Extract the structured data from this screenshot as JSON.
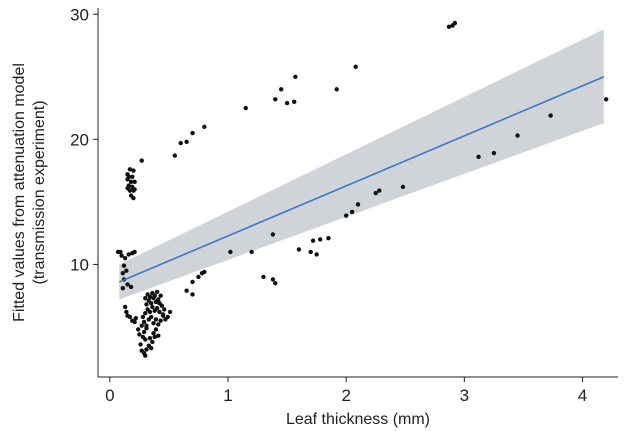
{
  "chart_data": {
    "type": "scatter",
    "title": "",
    "xlabel": "Leaf thickness (mm)",
    "ylabel": "Fitted values from attenuation model",
    "ylabel_line2": "(transmission experiment)",
    "xlim": [
      -0.1,
      4.3
    ],
    "ylim": [
      1.0,
      30.5
    ],
    "x_ticks": [
      0,
      1,
      2,
      3,
      4
    ],
    "y_ticks": [
      10,
      20,
      30
    ],
    "grid": false,
    "legend": "none",
    "colors": {
      "points": "#111111",
      "line": "#3a78c6",
      "band": "#c8ccd2",
      "axis": "#222222"
    },
    "fit": {
      "method": "linear",
      "x": [
        0.08,
        4.18
      ],
      "y": [
        8.6,
        25.0
      ],
      "ci_lower": [
        7.2,
        21.3
      ],
      "ci_upper": [
        10.0,
        28.8
      ]
    },
    "points": [
      [
        0.07,
        11.0
      ],
      [
        0.09,
        11.0
      ],
      [
        0.1,
        10.7
      ],
      [
        0.13,
        10.5
      ],
      [
        0.16,
        10.8
      ],
      [
        0.19,
        10.9
      ],
      [
        0.21,
        11.0
      ],
      [
        0.11,
        9.3
      ],
      [
        0.12,
        8.8
      ],
      [
        0.14,
        9.5
      ],
      [
        0.11,
        8.1
      ],
      [
        0.15,
        8.4
      ],
      [
        0.18,
        8.2
      ],
      [
        0.12,
        9.9
      ],
      [
        0.15,
        17.2
      ],
      [
        0.17,
        17.6
      ],
      [
        0.2,
        17.5
      ],
      [
        0.16,
        17.0
      ],
      [
        0.19,
        17.0
      ],
      [
        0.15,
        16.8
      ],
      [
        0.18,
        16.6
      ],
      [
        0.21,
        16.6
      ],
      [
        0.16,
        16.3
      ],
      [
        0.19,
        16.2
      ],
      [
        0.17,
        15.9
      ],
      [
        0.2,
        15.9
      ],
      [
        0.18,
        15.5
      ],
      [
        0.2,
        15.3
      ],
      [
        0.15,
        16.1
      ],
      [
        0.21,
        16.0
      ],
      [
        0.27,
        18.3
      ],
      [
        0.13,
        6.6
      ],
      [
        0.14,
        6.2
      ],
      [
        0.15,
        5.9
      ],
      [
        0.17,
        5.8
      ],
      [
        0.19,
        5.5
      ],
      [
        0.21,
        5.4
      ],
      [
        0.22,
        5.7
      ],
      [
        0.24,
        4.8
      ],
      [
        0.25,
        4.4
      ],
      [
        0.26,
        3.6
      ],
      [
        0.27,
        3.1
      ],
      [
        0.29,
        2.9
      ],
      [
        0.3,
        2.7
      ],
      [
        0.31,
        3.2
      ],
      [
        0.28,
        4.2
      ],
      [
        0.3,
        4.0
      ],
      [
        0.33,
        3.5
      ],
      [
        0.34,
        4.1
      ],
      [
        0.35,
        3.3
      ],
      [
        0.27,
        5.1
      ],
      [
        0.29,
        5.4
      ],
      [
        0.31,
        5.1
      ],
      [
        0.33,
        5.6
      ],
      [
        0.35,
        5.8
      ],
      [
        0.37,
        5.3
      ],
      [
        0.39,
        5.6
      ],
      [
        0.41,
        5.2
      ],
      [
        0.43,
        5.5
      ],
      [
        0.45,
        5.9
      ],
      [
        0.47,
        5.6
      ],
      [
        0.28,
        5.8
      ],
      [
        0.3,
        6.1
      ],
      [
        0.32,
        6.4
      ],
      [
        0.34,
        6.2
      ],
      [
        0.36,
        6.6
      ],
      [
        0.38,
        6.3
      ],
      [
        0.4,
        6.5
      ],
      [
        0.42,
        6.2
      ],
      [
        0.44,
        6.7
      ],
      [
        0.46,
        6.4
      ],
      [
        0.31,
        6.8
      ],
      [
        0.33,
        7.1
      ],
      [
        0.35,
        6.9
      ],
      [
        0.37,
        7.3
      ],
      [
        0.39,
        7.0
      ],
      [
        0.41,
        7.2
      ],
      [
        0.43,
        7.5
      ],
      [
        0.32,
        7.6
      ],
      [
        0.34,
        7.4
      ],
      [
        0.36,
        7.7
      ],
      [
        0.38,
        7.5
      ],
      [
        0.4,
        7.8
      ],
      [
        0.3,
        7.3
      ],
      [
        0.42,
        6.9
      ],
      [
        0.29,
        4.6
      ],
      [
        0.31,
        4.9
      ],
      [
        0.37,
        4.5
      ],
      [
        0.39,
        4.8
      ],
      [
        0.41,
        4.3
      ],
      [
        0.36,
        3.8
      ],
      [
        0.38,
        4.2
      ],
      [
        0.51,
        6.2
      ],
      [
        0.49,
        5.8
      ],
      [
        0.45,
        6.0
      ],
      [
        0.55,
        18.7
      ],
      [
        0.6,
        19.7
      ],
      [
        0.65,
        19.8
      ],
      [
        0.7,
        20.5
      ],
      [
        0.8,
        21.0
      ],
      [
        0.65,
        7.9
      ],
      [
        0.7,
        8.6
      ],
      [
        0.75,
        9.0
      ],
      [
        0.78,
        9.3
      ],
      [
        0.8,
        9.4
      ],
      [
        0.7,
        7.6
      ],
      [
        1.02,
        11.0
      ],
      [
        1.15,
        22.5
      ],
      [
        1.2,
        11.0
      ],
      [
        1.3,
        9.0
      ],
      [
        1.38,
        8.8
      ],
      [
        1.4,
        8.5
      ],
      [
        1.38,
        12.4
      ],
      [
        1.4,
        23.2
      ],
      [
        1.45,
        24.0
      ],
      [
        1.5,
        22.9
      ],
      [
        1.56,
        23.0
      ],
      [
        1.57,
        25.0
      ],
      [
        1.6,
        11.2
      ],
      [
        1.7,
        11.0
      ],
      [
        1.72,
        11.9
      ],
      [
        1.75,
        10.8
      ],
      [
        1.78,
        12.0
      ],
      [
        1.85,
        12.1
      ],
      [
        1.92,
        24.0
      ],
      [
        2.0,
        13.9
      ],
      [
        2.05,
        14.2
      ],
      [
        2.08,
        25.8
      ],
      [
        2.1,
        14.8
      ],
      [
        2.25,
        15.7
      ],
      [
        2.28,
        15.9
      ],
      [
        2.48,
        16.2
      ],
      [
        2.87,
        29.0
      ],
      [
        2.9,
        29.1
      ],
      [
        2.92,
        29.3
      ],
      [
        3.12,
        18.6
      ],
      [
        3.25,
        18.9
      ],
      [
        3.45,
        20.3
      ],
      [
        3.73,
        21.9
      ],
      [
        4.2,
        23.2
      ]
    ]
  }
}
